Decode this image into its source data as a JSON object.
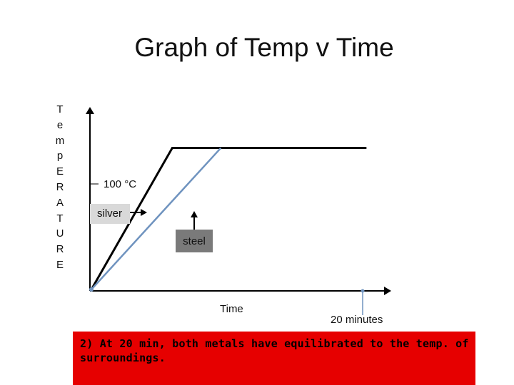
{
  "chart_data": {
    "type": "line",
    "title": "Graph of Temp v Time",
    "ylabel": "TempERATURE",
    "xlabel": "Time",
    "annotations": {
      "temp_level": "100 °C",
      "silver_label": "silver",
      "steel_label": "steel",
      "time_marker": "20 minutes"
    },
    "series": [
      {
        "name": "silver",
        "color": "#000000",
        "points": [
          [
            0,
            0
          ],
          [
            1.0,
            100
          ],
          [
            3.4,
            100
          ]
        ]
      },
      {
        "name": "steel",
        "color": "#6f93bf",
        "points": [
          [
            0,
            0
          ],
          [
            1.6,
            100
          ]
        ]
      }
    ],
    "xlim": [
      0,
      3.6
    ],
    "ylim": [
      0,
      130
    ],
    "grid": false
  },
  "note": "2) At 20 min, both metals have equilibrated to the temp. of surroundings."
}
